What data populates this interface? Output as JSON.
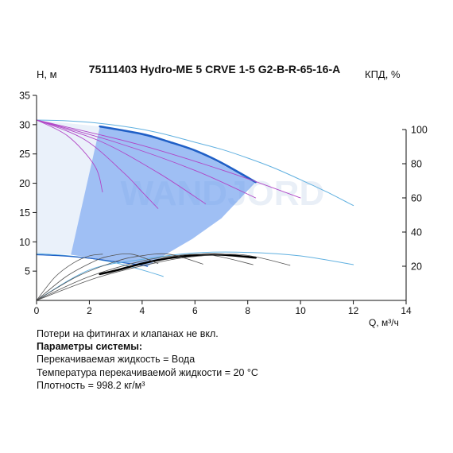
{
  "chart_data": {
    "type": "line",
    "title": "75111403 Hydro-ME 5 CRVE 1-5 G2-B-R-65-16-A",
    "ylabel": "H, м",
    "y2label": "КПД, %",
    "xlabel": "Q, м³/ч",
    "xlim": [
      0,
      14
    ],
    "ylim": [
      0,
      35
    ],
    "y2lim": [
      0,
      120
    ],
    "x_ticks": [
      0,
      2,
      4,
      6,
      8,
      10,
      12,
      14
    ],
    "y_ticks": [
      5,
      10,
      15,
      20,
      25,
      30,
      35
    ],
    "y2_ticks": [
      20,
      40,
      60,
      80,
      100
    ],
    "watermark": "WANDJORD",
    "colors": {
      "operating_area": "#5f94ec",
      "light_area": "#e8eff9",
      "head_bold": "#1f5fc6",
      "head_thin": "#60b0e0",
      "throttle": "#b046c6",
      "efficiency_bold": "#000000",
      "efficiency_thin": "#555555",
      "axis": "#111111"
    },
    "operating_area": {
      "points": [
        [
          2.4,
          29.7
        ],
        [
          4,
          28.4
        ],
        [
          6,
          25.6
        ],
        [
          8.3,
          20.2
        ],
        [
          7,
          14
        ],
        [
          5.9,
          10.5
        ],
        [
          4.8,
          7.6
        ],
        [
          4.2,
          5.8
        ],
        [
          1.3,
          7.8
        ]
      ]
    },
    "light_area": {
      "points": [
        [
          0,
          30.8
        ],
        [
          2.4,
          29.7
        ],
        [
          1.3,
          7.8
        ],
        [
          0,
          8.0
        ]
      ]
    },
    "series": [
      {
        "role": "head-max-bold",
        "x": [
          2.4,
          4,
          5,
          6,
          7,
          8.3
        ],
        "y": [
          29.7,
          28.4,
          27.1,
          25.6,
          23.5,
          20.2
        ]
      },
      {
        "role": "head-max-thin",
        "x": [
          0,
          1,
          2,
          3,
          4,
          5,
          6,
          7,
          8,
          9,
          10,
          11,
          12
        ],
        "y": [
          30.8,
          30.7,
          30.4,
          29.9,
          29.2,
          28.2,
          27,
          25.8,
          24.3,
          22.6,
          20.6,
          18.5,
          16.2
        ]
      },
      {
        "role": "head-min-thin",
        "x": [
          0,
          1,
          2,
          3,
          4,
          4.8
        ],
        "y": [
          8,
          7.7,
          7.2,
          6.4,
          5.2,
          4.1
        ]
      },
      {
        "role": "head-min-bold",
        "x": [
          0,
          1,
          2,
          3,
          4,
          4.2
        ],
        "y": [
          7.8,
          7.6,
          7.2,
          6.6,
          6,
          5.8
        ]
      },
      {
        "role": "efficiency-min-speed-thin",
        "x": [
          0,
          2,
          4,
          6,
          8,
          10,
          12
        ],
        "y": [
          0,
          5.2,
          7.0,
          8.1,
          8.2,
          7.6,
          6.1
        ]
      },
      {
        "role": "throttle-1",
        "x": [
          0,
          1.2,
          2.2,
          2.5
        ],
        "y": [
          30.8,
          28,
          23,
          18.5
        ]
      },
      {
        "role": "throttle-2",
        "x": [
          0,
          1.8,
          3.3,
          4,
          4.6
        ],
        "y": [
          30.8,
          27.5,
          21.8,
          18.5,
          15.7
        ]
      },
      {
        "role": "throttle-3",
        "x": [
          0,
          2.4,
          4.6,
          6.4
        ],
        "y": [
          30.8,
          27.2,
          21.8,
          16.5
        ]
      },
      {
        "role": "throttle-4",
        "x": [
          0,
          3,
          6,
          8.3
        ],
        "y": [
          30.8,
          27,
          22.2,
          17.5
        ]
      },
      {
        "role": "throttle-5",
        "x": [
          0,
          3.8,
          7.2,
          10
        ],
        "y": [
          30.8,
          26.7,
          22,
          17.5
        ]
      },
      {
        "role": "efficiency-bold",
        "x": [
          2.4,
          3,
          4,
          5,
          6,
          7,
          8.3
        ],
        "y": [
          4.5,
          5.1,
          6.3,
          7.2,
          7.7,
          7.8,
          7.3
        ]
      },
      {
        "role": "efficiency-thin-1",
        "x": [
          0,
          0.7,
          1.4,
          2.0,
          2.5
        ],
        "y": [
          0,
          4.0,
          6.4,
          7.6,
          7.9
        ]
      },
      {
        "role": "efficiency-thin-2",
        "x": [
          0,
          1.1,
          2.1,
          2.7,
          3.6,
          4.6
        ],
        "y": [
          0,
          4.0,
          6.5,
          7.5,
          7.9,
          6.3
        ]
      },
      {
        "role": "efficiency-thin-3",
        "x": [
          0,
          1.5,
          2.9,
          3.8,
          5.0,
          6.3
        ],
        "y": [
          0,
          4.0,
          6.5,
          7.5,
          7.9,
          6.2
        ]
      },
      {
        "role": "efficiency-thin-4",
        "x": [
          0,
          1.9,
          3.7,
          5.0,
          6.5,
          8.2
        ],
        "y": [
          0,
          3.9,
          6.4,
          7.5,
          7.8,
          6.1
        ]
      },
      {
        "role": "efficiency-thin-5",
        "x": [
          0,
          2.3,
          4.5,
          6.0,
          7.8,
          9.6
        ],
        "y": [
          0,
          3.9,
          6.4,
          7.5,
          7.8,
          6.0
        ]
      }
    ]
  },
  "notes": {
    "line1": "Потери на фитингах и клапанах не вкл.",
    "line2": "Параметры системы:",
    "line3": "Перекачиваемая жидкость = Вода",
    "line4": "Температура перекачиваемой жидкости = 20 °C",
    "line5": "Плотность = 998.2 кг/м³"
  }
}
